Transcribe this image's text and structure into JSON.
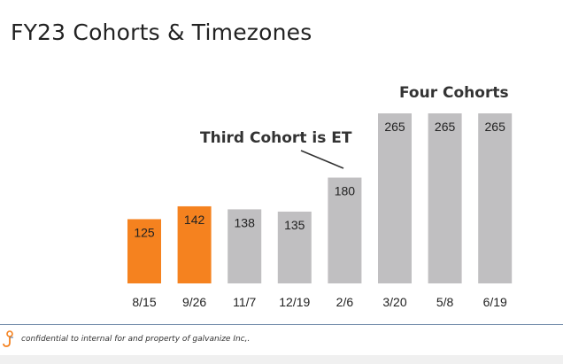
{
  "title": "FY23 Cohorts & Timezones",
  "annotations": {
    "four_cohorts": "Four Cohorts",
    "third_cohort": "Third Cohort is ET"
  },
  "footer": {
    "logo_icon": "galvanize-logo-icon",
    "text": "confidential to internal for and property of galvanize Inc,."
  },
  "colors": {
    "highlight": "#f5821f",
    "default": "#c0bfc1"
  },
  "chart_data": {
    "type": "bar",
    "title": "",
    "xlabel": "",
    "ylabel": "",
    "categories": [
      "8/15",
      "9/26",
      "11/7",
      "12/19",
      "2/6",
      "3/20",
      "5/8",
      "6/19"
    ],
    "values": [
      125,
      142,
      138,
      135,
      180,
      265,
      265,
      265
    ],
    "highlighted": [
      true,
      true,
      false,
      false,
      false,
      false,
      false,
      false
    ],
    "data_labels": true,
    "grid": false,
    "legend": "none",
    "ylim": [
      40,
      275
    ]
  }
}
